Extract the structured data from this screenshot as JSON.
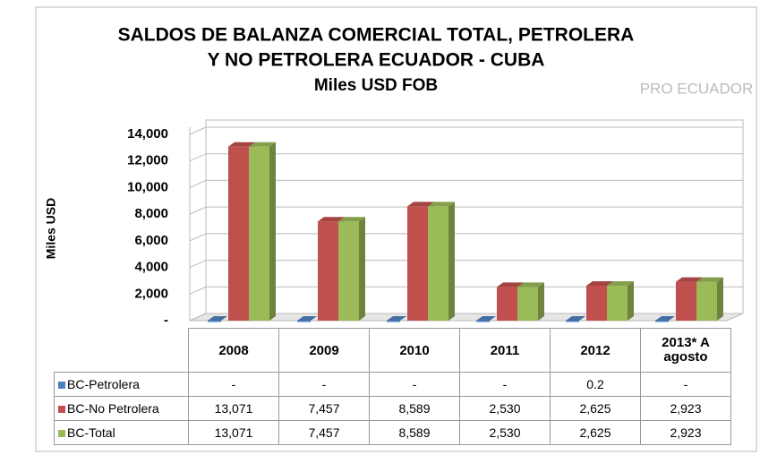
{
  "chart_data": {
    "type": "bar3d",
    "title_lines": [
      "SALDOS DE BALANZA COMERCIAL  TOTAL, PETROLERA",
      "Y NO PETROLERA ECUADOR - CUBA",
      "Miles USD FOB"
    ],
    "logo": "PRO ECUADOR",
    "y_label": "Miles USD",
    "categories": [
      "2008",
      "2009",
      "2010",
      "2011",
      "2012",
      "2013* A agosto"
    ],
    "series": [
      {
        "name": "BC-Petrolera",
        "color": "#4f81bd",
        "values": [
          0,
          0,
          0,
          0,
          0.2,
          0
        ],
        "value_labels": [
          "-",
          "-",
          "-",
          "-",
          "0.2",
          "-"
        ]
      },
      {
        "name": "BC-No Petrolera",
        "color": "#c0504d",
        "values": [
          13071,
          7457,
          8589,
          2530,
          2625,
          2923
        ],
        "value_labels": [
          "13,071",
          "7,457",
          "8,589",
          "2,530",
          "2,625",
          "2,923"
        ]
      },
      {
        "name": "BC-Total",
        "color": "#9bbb59",
        "values": [
          13071,
          7457,
          8589,
          2530,
          2625,
          2923
        ],
        "value_labels": [
          "13,071",
          "7,457",
          "8,589",
          "2,530",
          "2,625",
          "2,923"
        ]
      }
    ],
    "ylim": [
      0,
      14000
    ],
    "yticks": [
      {
        "value": 0,
        "label": "-"
      },
      {
        "value": 2000,
        "label": "2,000"
      },
      {
        "value": 4000,
        "label": "4,000"
      },
      {
        "value": 6000,
        "label": "6,000"
      },
      {
        "value": 8000,
        "label": "8,000"
      },
      {
        "value": 10000,
        "label": "10,000"
      },
      {
        "value": 12000,
        "label": "12,000"
      },
      {
        "value": 14000,
        "label": "14,000"
      }
    ],
    "grid": true
  }
}
